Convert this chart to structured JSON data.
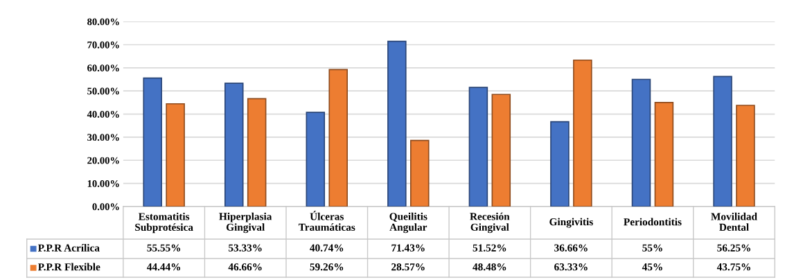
{
  "chart_data": {
    "type": "bar",
    "categories": [
      "Estomatitis Subprotésica",
      "Hiperplasia Gingival",
      "Úlceras Traumáticas",
      "Queilitis Angular",
      "Recesión Gingival",
      "Gingivitis",
      "Periodontitis",
      "Movilidad Dental"
    ],
    "series": [
      {
        "name": "P.P.R Acrílica",
        "color": "#4472c4",
        "values": [
          55.55,
          53.33,
          40.74,
          71.43,
          51.52,
          36.66,
          55,
          56.25
        ],
        "value_labels": [
          "55.55%",
          "53.33%",
          "40.74%",
          "71.43%",
          "51.52%",
          "36.66%",
          "55%",
          "56.25%"
        ]
      },
      {
        "name": "P.P.R Flexible",
        "color": "#ed7d31",
        "values": [
          44.44,
          46.66,
          59.26,
          28.57,
          48.48,
          63.33,
          45,
          43.75
        ],
        "value_labels": [
          "44.44%",
          "46.66%",
          "59.26%",
          "28.57%",
          "48.48%",
          "63.33%",
          "45%",
          "43.75%"
        ]
      }
    ],
    "ylim": [
      0,
      80
    ],
    "yticks": [
      {
        "value": 0,
        "label": "0.00%"
      },
      {
        "value": 10,
        "label": "10.00%"
      },
      {
        "value": 20,
        "label": "20.00%"
      },
      {
        "value": 30,
        "label": "30.00%"
      },
      {
        "value": 40,
        "label": "40.00%"
      },
      {
        "value": 50,
        "label": "50.00%"
      },
      {
        "value": 60,
        "label": "60.00%"
      },
      {
        "value": 70,
        "label": "70.00%"
      },
      {
        "value": 80,
        "label": "80.00%"
      }
    ],
    "grid": "y",
    "legend": "bottom left"
  }
}
